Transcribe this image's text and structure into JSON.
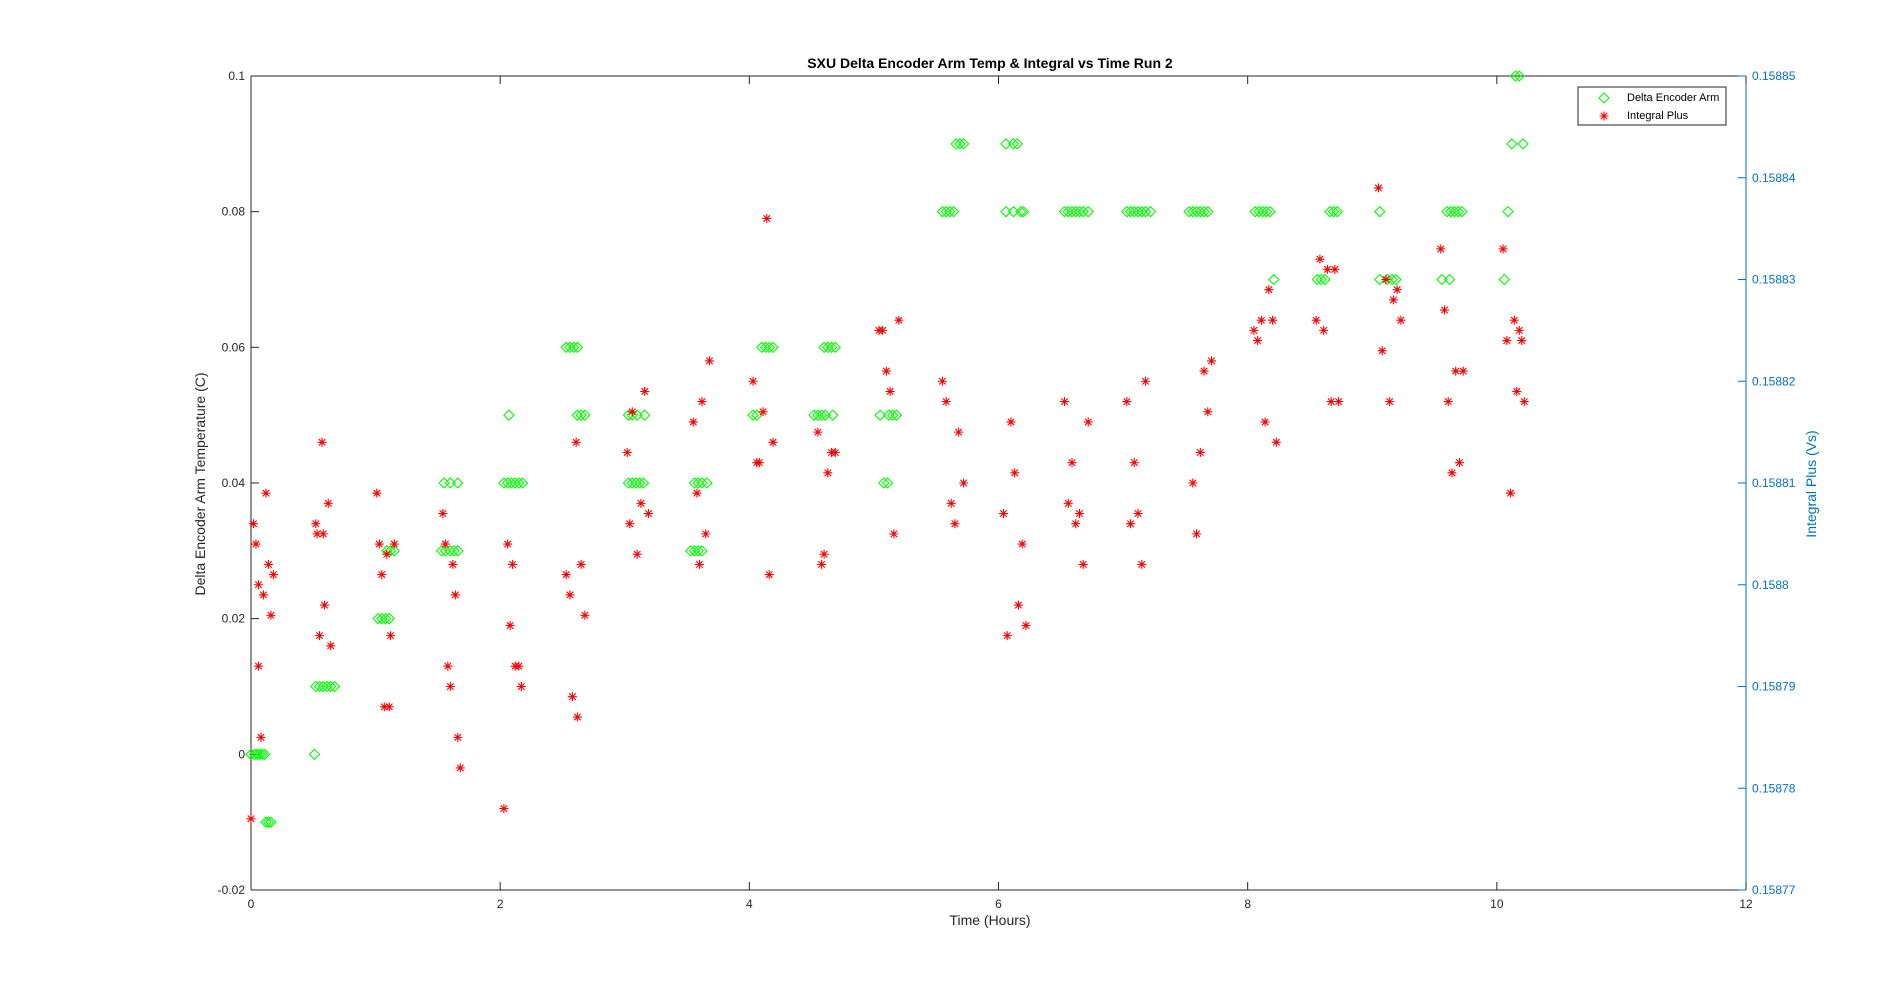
{
  "chart_data": {
    "type": "scatter",
    "title": "SXU Delta Encoder Arm Temp & Integral vs Time Run 2",
    "xlabel": "Time (Hours)",
    "ylabel": "Delta Encoder Arm Temperature (C)",
    "y2label": "Integral Plus (Vs)",
    "xlim": [
      0,
      12
    ],
    "ylim": [
      -0.02,
      0.1
    ],
    "y2lim": [
      0.15877,
      0.15885
    ],
    "x_ticks": [
      "0",
      "2",
      "4",
      "6",
      "8",
      "10",
      "12"
    ],
    "y_ticks": [
      "-0.02",
      "0",
      "0.02",
      "0.04",
      "0.06",
      "0.08",
      "0.1"
    ],
    "y2_ticks": [
      "0.15877",
      "0.15878",
      "0.15879",
      "0.1588",
      "0.15881",
      "0.15882",
      "0.15883",
      "0.15884",
      "0.15885"
    ],
    "grid": false,
    "legend_position": "top-right",
    "colors": {
      "arm": "#00ff00",
      "integral": "#ff0000",
      "right_axis": "#0072bd",
      "axis": "#262626"
    },
    "series": [
      {
        "name": "Delta Encoder Arm",
        "marker": "diamond",
        "axis": "left",
        "points": [
          [
            0.0,
            0.0
          ],
          [
            0.03,
            0.0
          ],
          [
            0.05,
            0.0
          ],
          [
            0.07,
            0.0
          ],
          [
            0.09,
            0.0
          ],
          [
            0.11,
            0.0
          ],
          [
            0.12,
            -0.01
          ],
          [
            0.14,
            -0.01
          ],
          [
            0.16,
            -0.01
          ],
          [
            0.51,
            0.0
          ],
          [
            0.52,
            0.01
          ],
          [
            0.55,
            0.01
          ],
          [
            0.58,
            0.01
          ],
          [
            0.61,
            0.01
          ],
          [
            0.64,
            0.01
          ],
          [
            0.67,
            0.01
          ],
          [
            1.02,
            0.02
          ],
          [
            1.05,
            0.02
          ],
          [
            1.08,
            0.02
          ],
          [
            1.11,
            0.02
          ],
          [
            1.09,
            0.03
          ],
          [
            1.12,
            0.03
          ],
          [
            1.15,
            0.03
          ],
          [
            1.53,
            0.03
          ],
          [
            1.56,
            0.03
          ],
          [
            1.6,
            0.03
          ],
          [
            1.63,
            0.03
          ],
          [
            1.66,
            0.03
          ],
          [
            1.55,
            0.04
          ],
          [
            1.6,
            0.04
          ],
          [
            1.66,
            0.04
          ],
          [
            2.03,
            0.04
          ],
          [
            2.06,
            0.04
          ],
          [
            2.09,
            0.04
          ],
          [
            2.12,
            0.04
          ],
          [
            2.15,
            0.04
          ],
          [
            2.18,
            0.04
          ],
          [
            2.07,
            0.05
          ],
          [
            2.53,
            0.06
          ],
          [
            2.56,
            0.06
          ],
          [
            2.59,
            0.06
          ],
          [
            2.62,
            0.06
          ],
          [
            2.62,
            0.05
          ],
          [
            2.65,
            0.05
          ],
          [
            2.68,
            0.05
          ],
          [
            3.03,
            0.05
          ],
          [
            3.06,
            0.05
          ],
          [
            3.1,
            0.05
          ],
          [
            3.16,
            0.05
          ],
          [
            3.03,
            0.04
          ],
          [
            3.06,
            0.04
          ],
          [
            3.09,
            0.04
          ],
          [
            3.12,
            0.04
          ],
          [
            3.15,
            0.04
          ],
          [
            3.53,
            0.03
          ],
          [
            3.56,
            0.03
          ],
          [
            3.59,
            0.03
          ],
          [
            3.62,
            0.03
          ],
          [
            3.56,
            0.04
          ],
          [
            3.59,
            0.04
          ],
          [
            3.62,
            0.04
          ],
          [
            3.66,
            0.04
          ],
          [
            4.03,
            0.05
          ],
          [
            4.06,
            0.05
          ],
          [
            4.1,
            0.06
          ],
          [
            4.13,
            0.06
          ],
          [
            4.16,
            0.06
          ],
          [
            4.19,
            0.06
          ],
          [
            4.52,
            0.05
          ],
          [
            4.55,
            0.05
          ],
          [
            4.58,
            0.05
          ],
          [
            4.61,
            0.05
          ],
          [
            4.67,
            0.05
          ],
          [
            4.6,
            0.06
          ],
          [
            4.63,
            0.06
          ],
          [
            4.66,
            0.06
          ],
          [
            4.69,
            0.06
          ],
          [
            5.05,
            0.05
          ],
          [
            5.12,
            0.05
          ],
          [
            5.15,
            0.05
          ],
          [
            5.18,
            0.05
          ],
          [
            5.08,
            0.04
          ],
          [
            5.11,
            0.04
          ],
          [
            5.55,
            0.08
          ],
          [
            5.58,
            0.08
          ],
          [
            5.61,
            0.08
          ],
          [
            5.64,
            0.08
          ],
          [
            5.66,
            0.09
          ],
          [
            5.69,
            0.09
          ],
          [
            5.72,
            0.09
          ],
          [
            6.06,
            0.09
          ],
          [
            6.12,
            0.09
          ],
          [
            6.15,
            0.09
          ],
          [
            6.06,
            0.08
          ],
          [
            6.12,
            0.08
          ],
          [
            6.18,
            0.08
          ],
          [
            6.2,
            0.08
          ],
          [
            6.53,
            0.08
          ],
          [
            6.56,
            0.08
          ],
          [
            6.59,
            0.08
          ],
          [
            6.62,
            0.08
          ],
          [
            6.65,
            0.08
          ],
          [
            6.68,
            0.08
          ],
          [
            6.72,
            0.08
          ],
          [
            7.03,
            0.08
          ],
          [
            7.06,
            0.08
          ],
          [
            7.09,
            0.08
          ],
          [
            7.12,
            0.08
          ],
          [
            7.15,
            0.08
          ],
          [
            7.18,
            0.08
          ],
          [
            7.22,
            0.08
          ],
          [
            7.53,
            0.08
          ],
          [
            7.56,
            0.08
          ],
          [
            7.59,
            0.08
          ],
          [
            7.62,
            0.08
          ],
          [
            7.65,
            0.08
          ],
          [
            7.68,
            0.08
          ],
          [
            8.06,
            0.08
          ],
          [
            8.09,
            0.08
          ],
          [
            8.12,
            0.08
          ],
          [
            8.15,
            0.08
          ],
          [
            8.18,
            0.08
          ],
          [
            8.21,
            0.07
          ],
          [
            8.56,
            0.07
          ],
          [
            8.59,
            0.07
          ],
          [
            8.62,
            0.07
          ],
          [
            8.66,
            0.08
          ],
          [
            8.69,
            0.08
          ],
          [
            8.72,
            0.08
          ],
          [
            9.06,
            0.08
          ],
          [
            9.06,
            0.07
          ],
          [
            9.12,
            0.07
          ],
          [
            9.16,
            0.07
          ],
          [
            9.19,
            0.07
          ],
          [
            9.56,
            0.07
          ],
          [
            9.62,
            0.07
          ],
          [
            9.6,
            0.08
          ],
          [
            9.63,
            0.08
          ],
          [
            9.66,
            0.08
          ],
          [
            9.69,
            0.08
          ],
          [
            9.72,
            0.08
          ],
          [
            10.06,
            0.07
          ],
          [
            10.09,
            0.08
          ],
          [
            10.12,
            0.09
          ],
          [
            10.21,
            0.09
          ],
          [
            10.15,
            0.1
          ],
          [
            10.18,
            0.1
          ]
        ]
      },
      {
        "name": "Integral Plus",
        "marker": "asterisk",
        "axis": "right",
        "points": [
          [
            0.0,
            0.158777
          ],
          [
            0.02,
            0.158806
          ],
          [
            0.04,
            0.158804
          ],
          [
            0.06,
            0.1588
          ],
          [
            0.06,
            0.158792
          ],
          [
            0.08,
            0.158785
          ],
          [
            0.1,
            0.158799
          ],
          [
            0.12,
            0.158809
          ],
          [
            0.14,
            0.158802
          ],
          [
            0.16,
            0.158797
          ],
          [
            0.18,
            0.158801
          ],
          [
            0.52,
            0.158806
          ],
          [
            0.53,
            0.158805
          ],
          [
            0.55,
            0.158795
          ],
          [
            0.57,
            0.158814
          ],
          [
            0.58,
            0.158805
          ],
          [
            0.59,
            0.158798
          ],
          [
            0.62,
            0.158808
          ],
          [
            0.64,
            0.158794
          ],
          [
            1.01,
            0.158809
          ],
          [
            1.03,
            0.158804
          ],
          [
            1.05,
            0.158801
          ],
          [
            1.07,
            0.158788
          ],
          [
            1.09,
            0.158803
          ],
          [
            1.11,
            0.158788
          ],
          [
            1.12,
            0.158795
          ],
          [
            1.15,
            0.158804
          ],
          [
            1.54,
            0.158807
          ],
          [
            1.56,
            0.158804
          ],
          [
            1.58,
            0.158792
          ],
          [
            1.6,
            0.15879
          ],
          [
            1.62,
            0.158802
          ],
          [
            1.64,
            0.158799
          ],
          [
            1.66,
            0.158785
          ],
          [
            1.68,
            0.158782
          ],
          [
            2.03,
            0.158778
          ],
          [
            2.06,
            0.158804
          ],
          [
            2.08,
            0.158796
          ],
          [
            2.1,
            0.158802
          ],
          [
            2.12,
            0.158792
          ],
          [
            2.15,
            0.158792
          ],
          [
            2.17,
            0.15879
          ],
          [
            2.53,
            0.158801
          ],
          [
            2.56,
            0.158799
          ],
          [
            2.58,
            0.158789
          ],
          [
            2.61,
            0.158814
          ],
          [
            2.62,
            0.158787
          ],
          [
            2.65,
            0.158802
          ],
          [
            2.68,
            0.158797
          ],
          [
            3.02,
            0.158813
          ],
          [
            3.04,
            0.158806
          ],
          [
            3.06,
            0.158817
          ],
          [
            3.1,
            0.158803
          ],
          [
            3.13,
            0.158808
          ],
          [
            3.16,
            0.158819
          ],
          [
            3.19,
            0.158807
          ],
          [
            3.55,
            0.158816
          ],
          [
            3.58,
            0.158809
          ],
          [
            3.6,
            0.158802
          ],
          [
            3.62,
            0.158818
          ],
          [
            3.65,
            0.158805
          ],
          [
            3.68,
            0.158822
          ],
          [
            4.03,
            0.15882
          ],
          [
            4.06,
            0.158812
          ],
          [
            4.08,
            0.158812
          ],
          [
            4.11,
            0.158817
          ],
          [
            4.14,
            0.158836
          ],
          [
            4.16,
            0.158801
          ],
          [
            4.19,
            0.158814
          ],
          [
            4.55,
            0.158815
          ],
          [
            4.58,
            0.158802
          ],
          [
            4.6,
            0.158803
          ],
          [
            4.63,
            0.158811
          ],
          [
            4.66,
            0.158813
          ],
          [
            4.69,
            0.158813
          ],
          [
            5.04,
            0.158825
          ],
          [
            5.07,
            0.158825
          ],
          [
            5.1,
            0.158821
          ],
          [
            5.13,
            0.158819
          ],
          [
            5.16,
            0.158805
          ],
          [
            5.2,
            0.158826
          ],
          [
            5.55,
            0.15882
          ],
          [
            5.58,
            0.158818
          ],
          [
            5.62,
            0.158808
          ],
          [
            5.65,
            0.158806
          ],
          [
            5.68,
            0.158815
          ],
          [
            5.72,
            0.15881
          ],
          [
            6.04,
            0.158807
          ],
          [
            6.07,
            0.158795
          ],
          [
            6.1,
            0.158816
          ],
          [
            6.13,
            0.158811
          ],
          [
            6.16,
            0.158798
          ],
          [
            6.19,
            0.158804
          ],
          [
            6.22,
            0.158796
          ],
          [
            6.53,
            0.158818
          ],
          [
            6.56,
            0.158808
          ],
          [
            6.59,
            0.158812
          ],
          [
            6.62,
            0.158806
          ],
          [
            6.65,
            0.158807
          ],
          [
            6.68,
            0.158802
          ],
          [
            6.72,
            0.158816
          ],
          [
            7.03,
            0.158818
          ],
          [
            7.06,
            0.158806
          ],
          [
            7.09,
            0.158812
          ],
          [
            7.12,
            0.158807
          ],
          [
            7.15,
            0.158802
          ],
          [
            7.18,
            0.15882
          ],
          [
            7.56,
            0.15881
          ],
          [
            7.59,
            0.158805
          ],
          [
            7.62,
            0.158813
          ],
          [
            7.65,
            0.158821
          ],
          [
            7.68,
            0.158817
          ],
          [
            7.71,
            0.158822
          ],
          [
            8.05,
            0.158825
          ],
          [
            8.08,
            0.158824
          ],
          [
            8.11,
            0.158826
          ],
          [
            8.14,
            0.158816
          ],
          [
            8.17,
            0.158829
          ],
          [
            8.2,
            0.158826
          ],
          [
            8.23,
            0.158814
          ],
          [
            8.55,
            0.158826
          ],
          [
            8.58,
            0.158832
          ],
          [
            8.61,
            0.158825
          ],
          [
            8.64,
            0.158831
          ],
          [
            8.67,
            0.158818
          ],
          [
            8.7,
            0.158831
          ],
          [
            8.73,
            0.158818
          ],
          [
            9.05,
            0.158839
          ],
          [
            9.08,
            0.158823
          ],
          [
            9.11,
            0.15883
          ],
          [
            9.14,
            0.158818
          ],
          [
            9.17,
            0.158828
          ],
          [
            9.2,
            0.158829
          ],
          [
            9.23,
            0.158826
          ],
          [
            9.55,
            0.158833
          ],
          [
            9.58,
            0.158827
          ],
          [
            9.61,
            0.158818
          ],
          [
            9.64,
            0.158811
          ],
          [
            9.67,
            0.158821
          ],
          [
            9.7,
            0.158812
          ],
          [
            9.73,
            0.158821
          ],
          [
            10.05,
            0.158833
          ],
          [
            10.08,
            0.158824
          ],
          [
            10.11,
            0.158809
          ],
          [
            10.14,
            0.158826
          ],
          [
            10.16,
            0.158819
          ],
          [
            10.18,
            0.158825
          ],
          [
            10.2,
            0.158824
          ],
          [
            10.22,
            0.158818
          ]
        ]
      }
    ]
  }
}
